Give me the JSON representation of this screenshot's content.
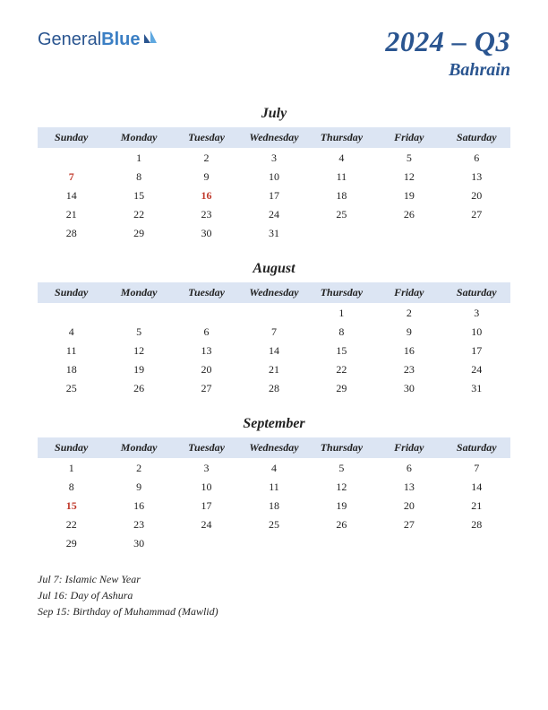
{
  "logo": {
    "part1": "General",
    "part2": "Blue"
  },
  "title": {
    "main": "2024 – Q3",
    "sub": "Bahrain"
  },
  "style": {
    "header_bg": "#dce5f3",
    "title_color": "#2a5590",
    "holiday_color": "#c0392b",
    "page_bg": "#ffffff",
    "text_color": "#222222",
    "title_fontsize": 32,
    "sub_fontsize": 20,
    "month_fontsize": 16,
    "dayhead_fontsize": 12,
    "cell_fontsize": 12
  },
  "day_headers": [
    "Sunday",
    "Monday",
    "Tuesday",
    "Wednesday",
    "Thursday",
    "Friday",
    "Saturday"
  ],
  "months": [
    {
      "name": "July",
      "weeks": [
        [
          "",
          "1",
          "2",
          "3",
          "4",
          "5",
          "6"
        ],
        [
          "7",
          "8",
          "9",
          "10",
          "11",
          "12",
          "13"
        ],
        [
          "14",
          "15",
          "16",
          "17",
          "18",
          "19",
          "20"
        ],
        [
          "21",
          "22",
          "23",
          "24",
          "25",
          "26",
          "27"
        ],
        [
          "28",
          "29",
          "30",
          "31",
          "",
          "",
          ""
        ]
      ],
      "holidays": [
        "7",
        "16"
      ]
    },
    {
      "name": "August",
      "weeks": [
        [
          "",
          "",
          "",
          "",
          "1",
          "2",
          "3"
        ],
        [
          "4",
          "5",
          "6",
          "7",
          "8",
          "9",
          "10"
        ],
        [
          "11",
          "12",
          "13",
          "14",
          "15",
          "16",
          "17"
        ],
        [
          "18",
          "19",
          "20",
          "21",
          "22",
          "23",
          "24"
        ],
        [
          "25",
          "26",
          "27",
          "28",
          "29",
          "30",
          "31"
        ]
      ],
      "holidays": []
    },
    {
      "name": "September",
      "weeks": [
        [
          "1",
          "2",
          "3",
          "4",
          "5",
          "6",
          "7"
        ],
        [
          "8",
          "9",
          "10",
          "11",
          "12",
          "13",
          "14"
        ],
        [
          "15",
          "16",
          "17",
          "18",
          "19",
          "20",
          "21"
        ],
        [
          "22",
          "23",
          "24",
          "25",
          "26",
          "27",
          "28"
        ],
        [
          "29",
          "30",
          "",
          "",
          "",
          "",
          ""
        ]
      ],
      "holidays": [
        "15"
      ]
    }
  ],
  "holiday_list": [
    "Jul 7: Islamic New Year",
    "Jul 16: Day of Ashura",
    "Sep 15: Birthday of Muhammad (Mawlid)"
  ]
}
